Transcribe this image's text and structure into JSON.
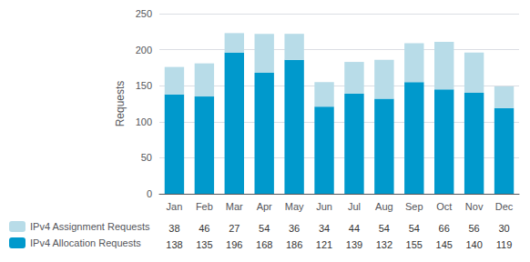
{
  "chart_data": {
    "type": "bar",
    "stacked": true,
    "grid": true,
    "legend": "bottom-left",
    "categories": [
      "Jan",
      "Feb",
      "Mar",
      "Apr",
      "May",
      "Jun",
      "Jul",
      "Aug",
      "Sep",
      "Oct",
      "Nov",
      "Dec"
    ],
    "y_label": "Requests",
    "ylim": [
      0,
      250
    ],
    "yticks": [
      0,
      50,
      100,
      150,
      200,
      250
    ],
    "series": [
      {
        "name": "IPv4 Allocation Requests",
        "color": "#0099cc",
        "values": [
          138,
          135,
          196,
          168,
          186,
          121,
          139,
          132,
          155,
          145,
          140,
          119
        ]
      },
      {
        "name": "IPv4 Assignment Requests",
        "color": "#b8dce8",
        "values": [
          38,
          46,
          27,
          54,
          36,
          34,
          44,
          54,
          54,
          66,
          56,
          30
        ]
      }
    ]
  }
}
